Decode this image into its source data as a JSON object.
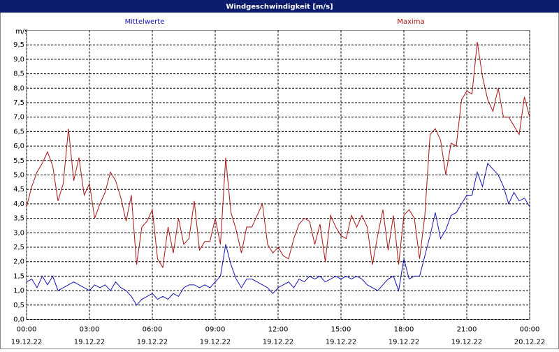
{
  "chart_data": {
    "type": "line",
    "title": "Windgeschwindigkeit [m/s]",
    "y_unit": "m/s",
    "xlim": [
      0,
      24
    ],
    "ylim": [
      0,
      10
    ],
    "grid": true,
    "xticks": [
      {
        "value": 0,
        "label": "00:00",
        "date": "19.12.22"
      },
      {
        "value": 3,
        "label": "03:00",
        "date": "19.12.22"
      },
      {
        "value": 6,
        "label": "06:00",
        "date": "19.12.22"
      },
      {
        "value": 9,
        "label": "09:00",
        "date": "19.12.22"
      },
      {
        "value": 12,
        "label": "12:00",
        "date": "19.12.22"
      },
      {
        "value": 15,
        "label": "15:00",
        "date": "19.12.22"
      },
      {
        "value": 18,
        "label": "18:00",
        "date": "19.12.22"
      },
      {
        "value": 21,
        "label": "21:00",
        "date": "19.12.22"
      },
      {
        "value": 24,
        "label": "00:00",
        "date": "20.12.22"
      }
    ],
    "yticks": [
      {
        "value": 0,
        "label": "0,0"
      },
      {
        "value": 0.5,
        "label": "0,5"
      },
      {
        "value": 1,
        "label": "1,0"
      },
      {
        "value": 1.5,
        "label": "1,5"
      },
      {
        "value": 2,
        "label": "2,0"
      },
      {
        "value": 2.5,
        "label": "2,5"
      },
      {
        "value": 3,
        "label": "3,0"
      },
      {
        "value": 3.5,
        "label": "3,5"
      },
      {
        "value": 4,
        "label": "4,0"
      },
      {
        "value": 4.5,
        "label": "4,5"
      },
      {
        "value": 5,
        "label": "5,0"
      },
      {
        "value": 5.5,
        "label": "5,5"
      },
      {
        "value": 6,
        "label": "6,0"
      },
      {
        "value": 6.5,
        "label": "6,5"
      },
      {
        "value": 7,
        "label": "7,0"
      },
      {
        "value": 7.5,
        "label": "7,5"
      },
      {
        "value": 8,
        "label": "8,0"
      },
      {
        "value": 8.5,
        "label": "8,5"
      },
      {
        "value": 9,
        "label": "9,0"
      },
      {
        "value": 9.5,
        "label": "9,5"
      }
    ],
    "x": [
      0,
      0.25,
      0.5,
      0.75,
      1,
      1.25,
      1.5,
      1.75,
      2,
      2.25,
      2.5,
      2.75,
      3,
      3.25,
      3.5,
      3.75,
      4,
      4.25,
      4.5,
      4.75,
      5,
      5.25,
      5.5,
      5.75,
      6,
      6.25,
      6.5,
      6.75,
      7,
      7.25,
      7.5,
      7.75,
      8,
      8.25,
      8.5,
      8.75,
      9,
      9.25,
      9.5,
      9.75,
      10,
      10.25,
      10.5,
      10.75,
      11,
      11.25,
      11.5,
      11.75,
      12,
      12.25,
      12.5,
      12.75,
      13,
      13.25,
      13.5,
      13.75,
      14,
      14.25,
      14.5,
      14.75,
      15,
      15.25,
      15.5,
      15.75,
      16,
      16.25,
      16.5,
      16.75,
      17,
      17.25,
      17.5,
      17.75,
      18,
      18.25,
      18.5,
      18.75,
      19,
      19.25,
      19.5,
      19.75,
      20,
      20.25,
      20.5,
      20.75,
      21,
      21.25,
      21.5,
      21.75,
      22,
      22.25,
      22.5,
      22.75,
      23,
      23.25,
      23.5,
      23.75,
      24
    ],
    "series": [
      {
        "name": "Mittelwerte",
        "color": "#1414b4",
        "values": [
          1.3,
          1.4,
          1.1,
          1.5,
          1.2,
          1.5,
          1.0,
          1.1,
          1.2,
          1.3,
          1.2,
          1.1,
          1.0,
          1.2,
          1.1,
          1.2,
          1.0,
          1.3,
          1.1,
          1.0,
          0.8,
          0.5,
          0.7,
          0.8,
          0.9,
          0.7,
          0.8,
          0.7,
          0.9,
          0.8,
          1.1,
          1.2,
          1.2,
          1.1,
          1.2,
          1.1,
          1.3,
          1.5,
          2.6,
          1.9,
          1.4,
          1.1,
          1.4,
          1.4,
          1.3,
          1.2,
          1.1,
          0.9,
          1.1,
          1.2,
          1.3,
          1.1,
          1.4,
          1.3,
          1.5,
          1.4,
          1.5,
          1.3,
          1.4,
          1.5,
          1.4,
          1.5,
          1.4,
          1.5,
          1.4,
          1.2,
          1.1,
          1.0,
          1.2,
          1.4,
          1.5,
          1.0,
          2.1,
          1.4,
          1.5,
          1.5,
          2.2,
          2.9,
          3.7,
          2.8,
          3.1,
          3.6,
          3.7,
          4.0,
          4.3,
          4.3,
          5.1,
          4.6,
          5.4,
          5.2,
          5.0,
          4.6,
          4.0,
          4.4,
          4.1,
          4.2,
          3.9
        ]
      },
      {
        "name": "Maxima",
        "color": "#aa1414",
        "values": [
          3.9,
          4.6,
          5.1,
          5.4,
          5.8,
          5.3,
          4.1,
          4.7,
          6.6,
          4.8,
          5.6,
          4.3,
          4.7,
          3.5,
          4.0,
          4.4,
          5.1,
          4.8,
          4.2,
          3.4,
          4.3,
          1.9,
          3.2,
          3.4,
          3.8,
          2.1,
          1.8,
          3.2,
          2.3,
          3.5,
          2.6,
          2.8,
          4.1,
          2.4,
          2.7,
          2.7,
          3.5,
          2.6,
          5.6,
          3.7,
          3.1,
          2.3,
          3.2,
          3.2,
          3.6,
          4.0,
          2.6,
          2.3,
          2.5,
          2.2,
          2.1,
          2.8,
          3.3,
          3.5,
          3.4,
          2.6,
          3.3,
          2.0,
          3.6,
          3.2,
          2.9,
          2.8,
          3.6,
          3.2,
          3.6,
          3.2,
          1.9,
          2.9,
          3.8,
          2.4,
          3.6,
          1.9,
          3.6,
          3.8,
          3.5,
          2.1,
          3.6,
          6.4,
          6.6,
          6.2,
          5.0,
          6.1,
          6.0,
          7.6,
          7.9,
          7.8,
          9.6,
          8.4,
          7.6,
          7.2,
          8.0,
          7.0,
          7.0,
          6.7,
          6.4,
          7.7,
          7.0
        ]
      }
    ]
  }
}
